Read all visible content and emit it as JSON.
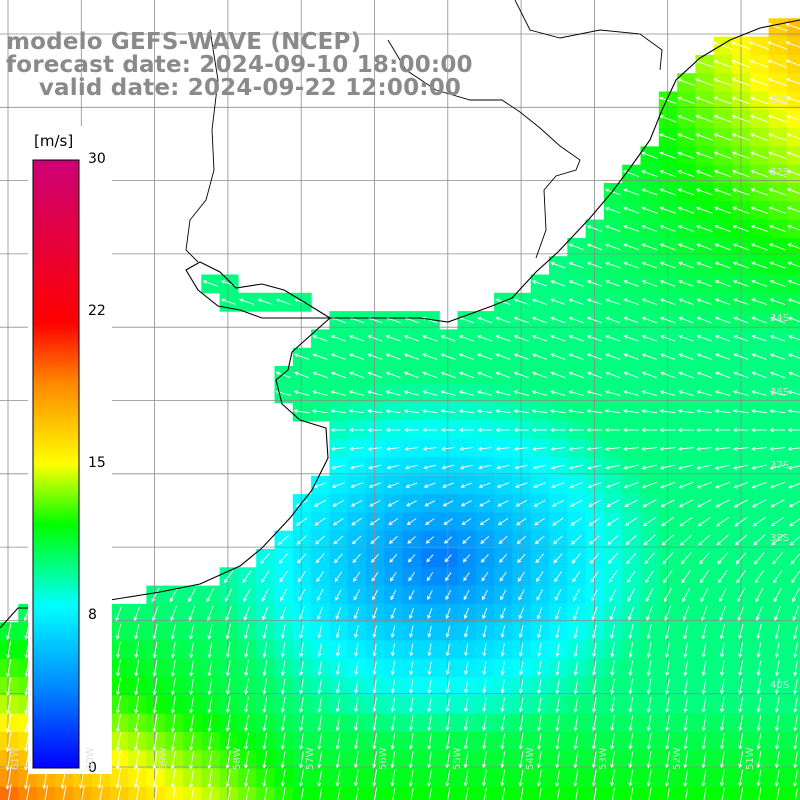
{
  "title": {
    "line1": "modelo GEFS-WAVE (NCEP)",
    "line2": "forecast date: 2024-09-10 18:00:00",
    "line3": "    valid date: 2024-09-22 12:00:00"
  },
  "colorbar": {
    "unit": "[m/s]",
    "ticks": [
      {
        "label": "30",
        "value": 30
      },
      {
        "label": "22",
        "value": 22
      },
      {
        "label": "15",
        "value": 15
      },
      {
        "label": "8",
        "value": 8
      },
      {
        "label": "0",
        "value": 0
      }
    ],
    "colors": [
      "#0000ff",
      "#0088ff",
      "#00ffff",
      "#00ff00",
      "#ffff00",
      "#ff8800",
      "#ff0000",
      "#cc0077"
    ]
  },
  "lat_labels": [
    "30S",
    "32S",
    "34S",
    "36S",
    "37S",
    "38S",
    "40S"
  ],
  "lon_labels": [
    "61W",
    "60W",
    "59W",
    "58W",
    "57W",
    "56W",
    "55W",
    "54W",
    "53W",
    "52W",
    "51W"
  ],
  "colors": {
    "land": "#ffffff",
    "coastline": "#000000",
    "grid": "#8c8c8c",
    "arrow": "#ffffff",
    "title": "#8a8a8a"
  }
}
